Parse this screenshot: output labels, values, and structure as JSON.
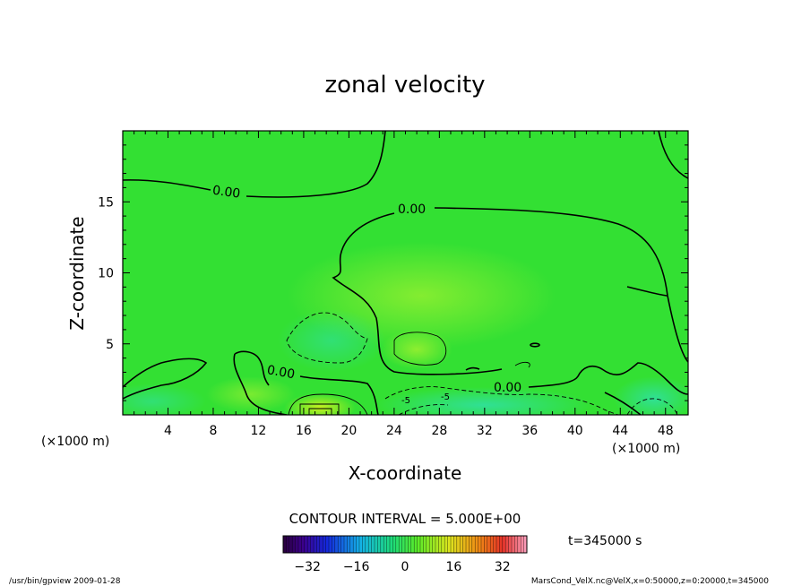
{
  "chart_data": {
    "type": "heatmap",
    "title": "zonal velocity",
    "xlabel": "X-coordinate",
    "ylabel": "Z-coordinate",
    "x_unit": "(×1000 m)",
    "y_unit": "(×1000 m)",
    "xlim": [
      0,
      50
    ],
    "ylim": [
      0,
      20
    ],
    "x_ticks": [
      4,
      8,
      12,
      16,
      20,
      24,
      28,
      32,
      36,
      40,
      44,
      48
    ],
    "y_ticks": [
      5,
      10,
      15
    ],
    "contour_labels": [
      {
        "text": "0.00",
        "x": 9.5,
        "z": 15.5
      },
      {
        "text": "0.00",
        "x": 26,
        "z": 14.5
      },
      {
        "text": "0.00",
        "x": 14,
        "z": 3.0
      },
      {
        "text": "0.00",
        "x": 34,
        "z": 1.8
      },
      {
        "text": "-5",
        "x": 25,
        "z": 1.2
      },
      {
        "text": "-5",
        "x": 28,
        "z": 1.1
      }
    ],
    "contour_interval_text": "CONTOUR INTERVAL = 5.000E+00",
    "colorbar": {
      "min": -40,
      "max": 40,
      "ticks": [
        -32,
        -16,
        0,
        16,
        32
      ]
    },
    "time_text": "t=345000 s",
    "colors": {
      "background_field": "#33e033",
      "positive": "#e0e020",
      "negative": "#30d8a0"
    }
  },
  "footer": {
    "left": "/usr/bin/gpview  2009-01-28",
    "right": "MarsCond_VelX.nc@VelX,x=0:50000,z=0:20000,t=345000"
  }
}
